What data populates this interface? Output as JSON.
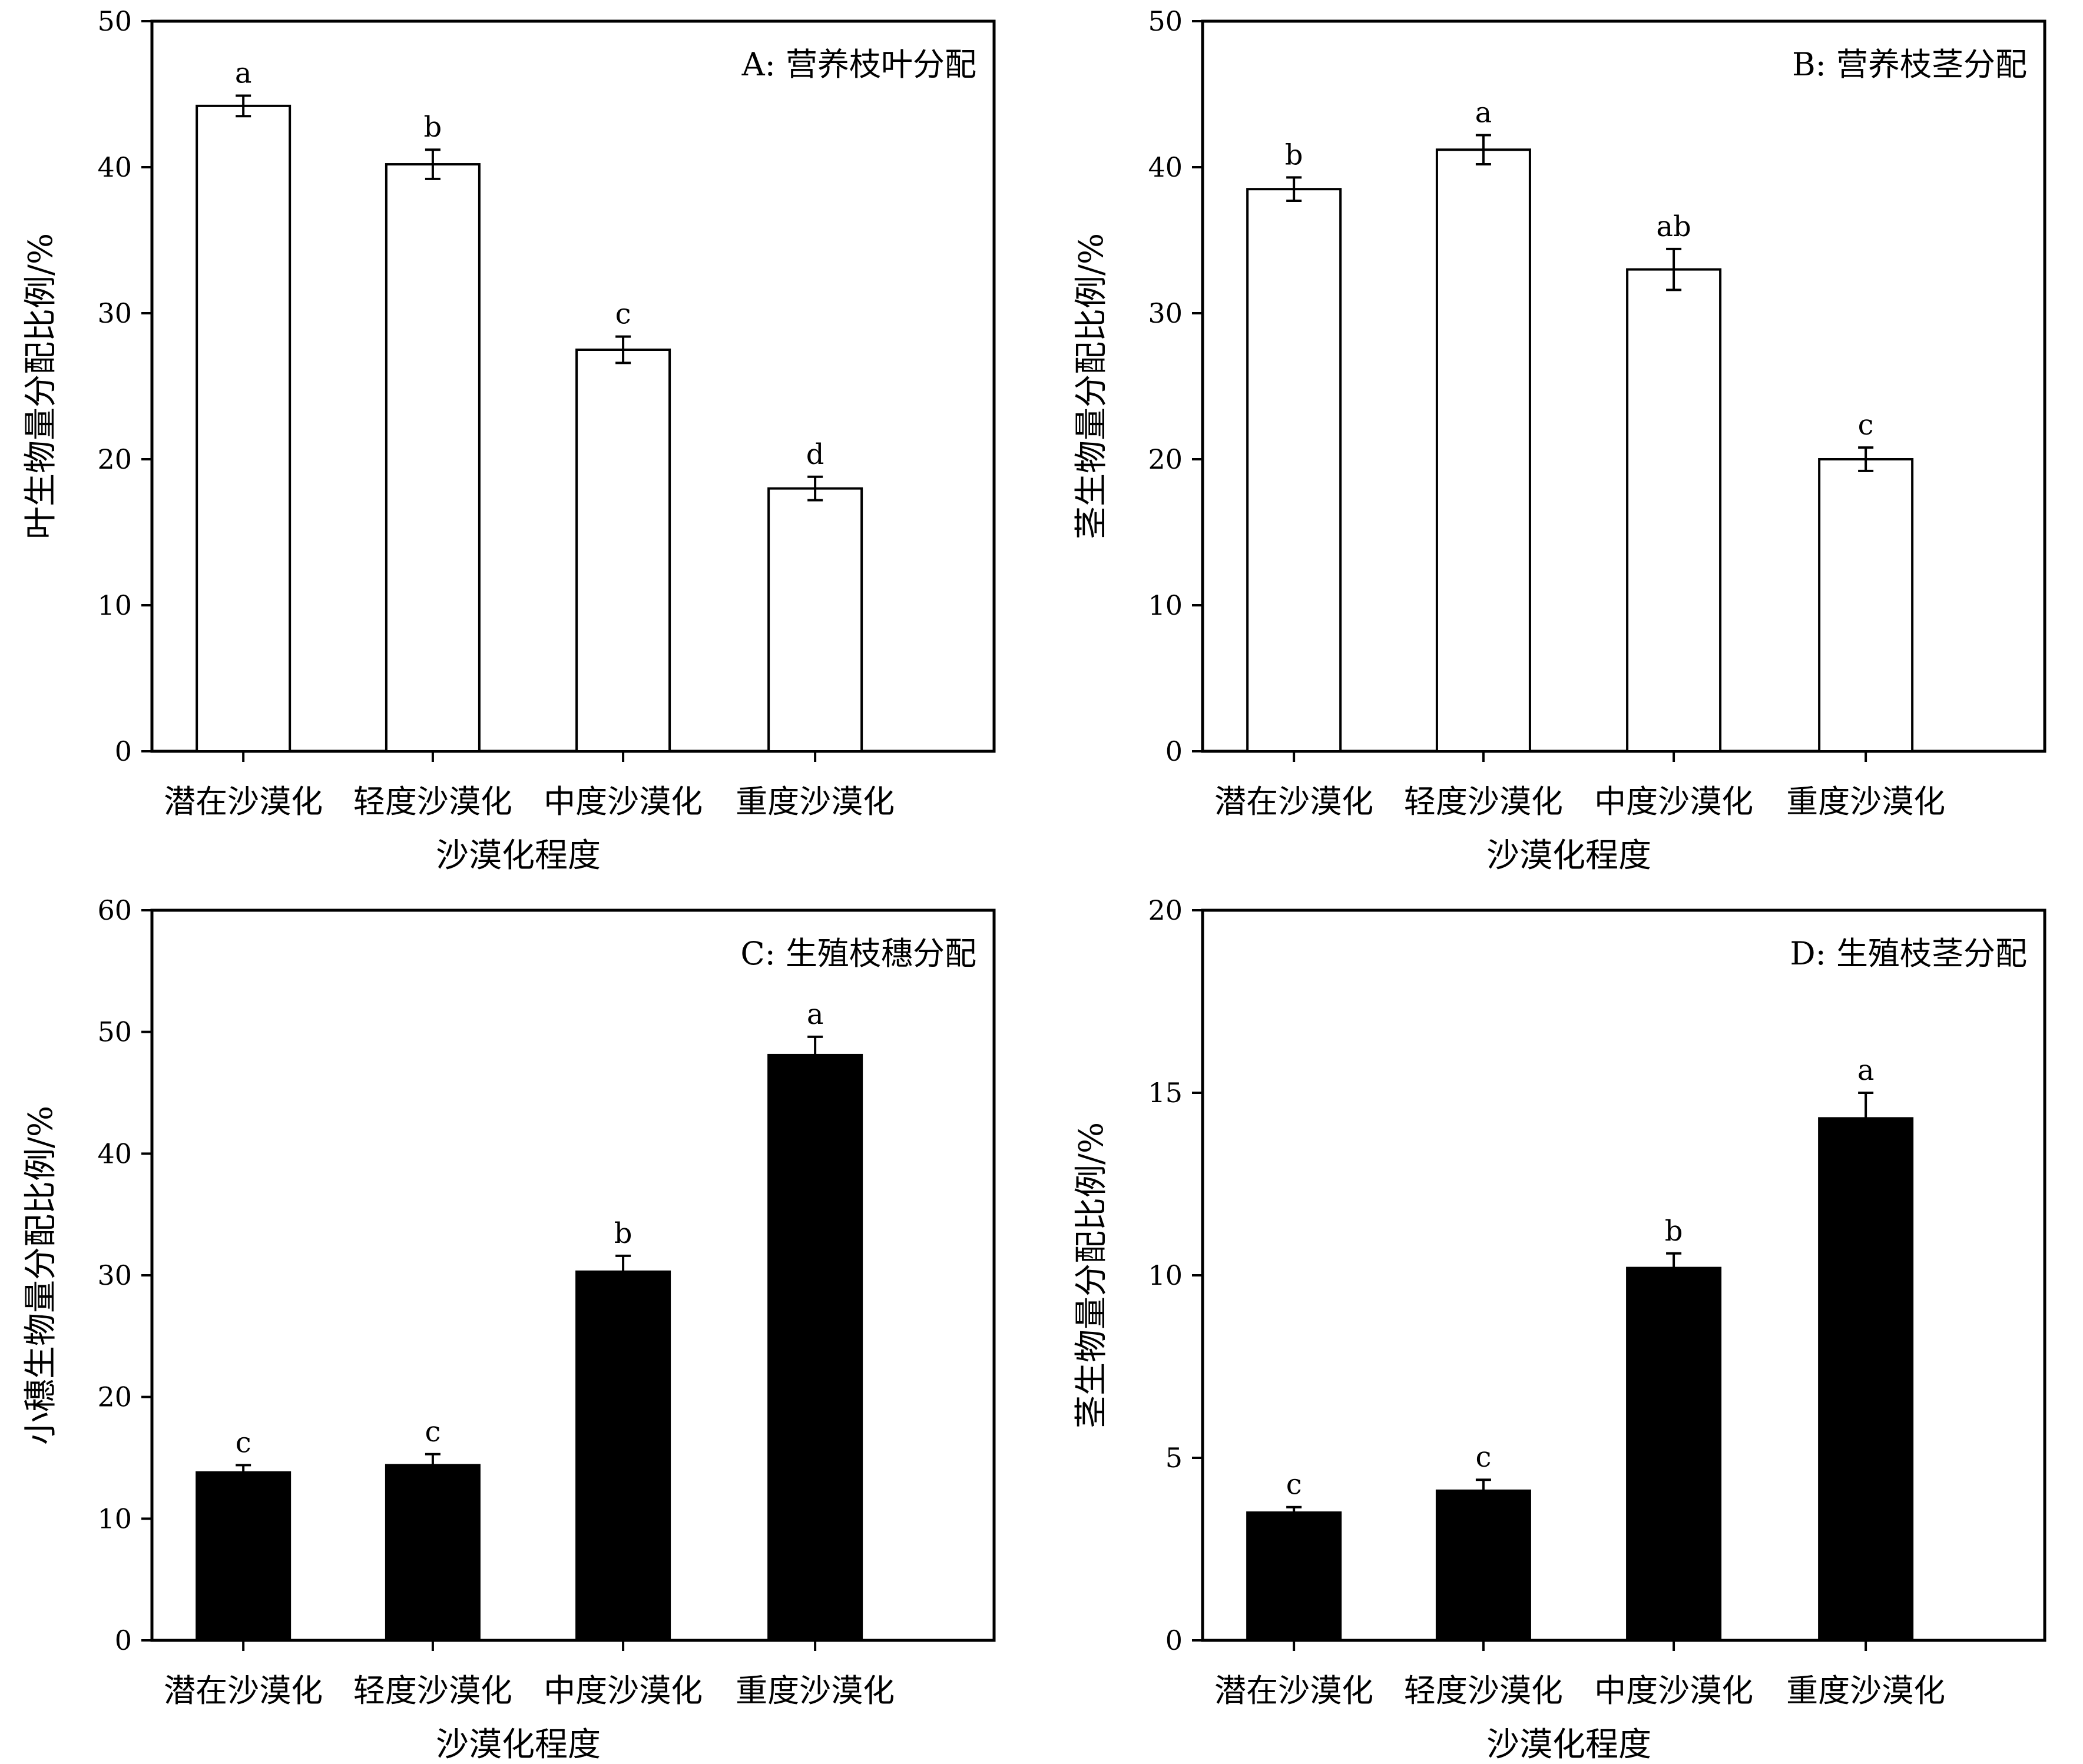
{
  "figure": {
    "categories": [
      "潜在沙漠化",
      "轻度沙漠化",
      "中度沙漠化",
      "重度沙漠化"
    ],
    "xlabel": "沙漠化程度"
  },
  "chart_data": [
    {
      "type": "bar",
      "title": "A: 营养枝叶分配",
      "ylabel": "叶生物量分配比例/%",
      "xlabel": "沙漠化程度",
      "categories": [
        "潜在沙漠化",
        "轻度沙漠化",
        "中度沙漠化",
        "重度沙漠化"
      ],
      "values": [
        44.2,
        40.2,
        27.5,
        18.0
      ],
      "errors": [
        0.7,
        1.0,
        0.9,
        0.8
      ],
      "letters": [
        "a",
        "b",
        "c",
        "d"
      ],
      "ylim": [
        0,
        50
      ],
      "yticks": [
        0,
        10,
        20,
        30,
        40,
        50
      ],
      "bar_fill": "#ffffff"
    },
    {
      "type": "bar",
      "title": "B: 营养枝茎分配",
      "ylabel": "茎生物量分配比例/%",
      "xlabel": "沙漠化程度",
      "categories": [
        "潜在沙漠化",
        "轻度沙漠化",
        "中度沙漠化",
        "重度沙漠化"
      ],
      "values": [
        38.5,
        41.2,
        33.0,
        20.0
      ],
      "errors": [
        0.8,
        1.0,
        1.4,
        0.8
      ],
      "letters": [
        "b",
        "a",
        "ab",
        "c"
      ],
      "ylim": [
        0,
        50
      ],
      "yticks": [
        0,
        10,
        20,
        30,
        40,
        50
      ],
      "bar_fill": "#ffffff"
    },
    {
      "type": "bar",
      "title": "C: 生殖枝穗分配",
      "ylabel": "小穗生物量分配比例/%",
      "xlabel": "沙漠化程度",
      "categories": [
        "潜在沙漠化",
        "轻度沙漠化",
        "中度沙漠化",
        "重度沙漠化"
      ],
      "values": [
        13.8,
        14.4,
        30.3,
        48.1
      ],
      "errors": [
        0.6,
        0.9,
        1.3,
        1.5
      ],
      "letters": [
        "c",
        "c",
        "b",
        "a"
      ],
      "ylim": [
        0,
        60
      ],
      "yticks": [
        0,
        10,
        20,
        30,
        40,
        50,
        60
      ],
      "bar_fill": "#000000"
    },
    {
      "type": "bar",
      "title": "D: 生殖枝茎分配",
      "ylabel": "茎生物量分配比例/%",
      "xlabel": "沙漠化程度",
      "categories": [
        "潜在沙漠化",
        "轻度沙漠化",
        "中度沙漠化",
        "重度沙漠化"
      ],
      "values": [
        3.5,
        4.1,
        10.2,
        14.3
      ],
      "errors": [
        0.15,
        0.3,
        0.4,
        0.7
      ],
      "letters": [
        "c",
        "c",
        "b",
        "a"
      ],
      "ylim": [
        0,
        20
      ],
      "yticks": [
        0,
        5,
        10,
        15,
        20
      ],
      "bar_fill": "#000000"
    }
  ]
}
